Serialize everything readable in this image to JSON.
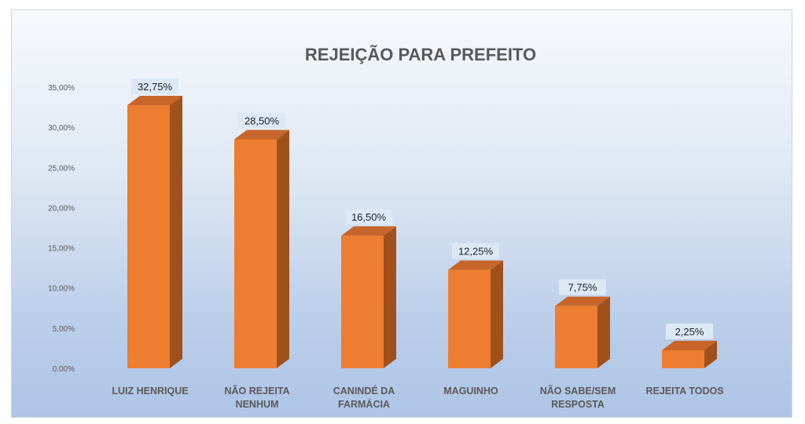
{
  "chart_data": {
    "type": "bar",
    "title": "REJEIÇÃO PARA PREFEITO",
    "xlabel": "",
    "ylabel": "",
    "categories": [
      "LUIZ HENRIQUE",
      "NÃO REJEITA NENHUM",
      "CANINDÉ DA FARMÁCIA",
      "MAGUINHO",
      "NÃO SABE/SEM RESPOSTA",
      "REJEITA TODOS"
    ],
    "category_lines": [
      [
        "LUIZ HENRIQUE"
      ],
      [
        "NÃO REJEITA",
        "NENHUM"
      ],
      [
        "CANINDÉ DA",
        "FARMÁCIA"
      ],
      [
        "MAGUINHO"
      ],
      [
        "NÃO SABE/SEM",
        "RESPOSTA"
      ],
      [
        "REJEITA TODOS"
      ]
    ],
    "values": [
      32.75,
      28.5,
      16.5,
      12.25,
      7.75,
      2.25
    ],
    "data_labels": [
      "32,75%",
      "28,50%",
      "16,50%",
      "12,25%",
      "7,75%",
      "2,25%"
    ],
    "ylim": [
      0,
      35
    ],
    "yticks": [
      0,
      5,
      10,
      15,
      20,
      25,
      30,
      35
    ],
    "ytick_labels": [
      "0,00%",
      "5,00%",
      "10,00%",
      "15,00%",
      "20,00%",
      "25,00%",
      "30,00%",
      "35,00%"
    ],
    "grid": false,
    "legend": "none",
    "style": "3d-column",
    "colors": {
      "bar_front": "#ed7d31",
      "bar_side": "#a0511b",
      "bar_top": "#c8652a",
      "label_box": "#dde8f5"
    }
  }
}
